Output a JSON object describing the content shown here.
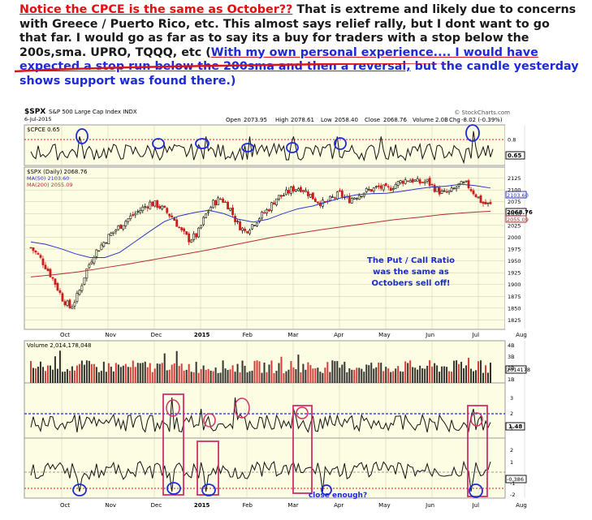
{
  "intro": {
    "highlight": "Notice the CPCE is the same as October??",
    "text_1": " That is extreme and likely due to concerns with Greece / Puerto Rico, etc.  This almost says relief rally, but I dont want to go that far.  I would go as far as to say its a buy for traders with a stop below the 200s,sma.  UPRO, TQQQ, etc  (",
    "note": "With my own personal experience.... I would have expected a stop run below the 200sma and then a reversal,",
    "text_2": " but the candle yesterday shows support was found there.)"
  },
  "header": {
    "symbol": "$SPX",
    "name": "S&P 500 Large Cap Index INDX",
    "date": "6-Jul-2015",
    "source": "© StockCharts.com",
    "open_label": "Open",
    "open": "2073.95",
    "high_label": "High",
    "high": "2078.61",
    "low_label": "Low",
    "low": "2058.40",
    "close_label": "Close",
    "close": "2068.76",
    "volume_label": "Volume",
    "volume": "2.0B",
    "chg_label": "Chg",
    "chg": "-8.02 (-0.39%)"
  },
  "panels": {
    "cpce_label": "$CPCE 0.65",
    "cpce_value_tag": "0.65",
    "price_label": "$SPX (Daily) 2068.76",
    "ma50_label": "MA(50) 2103.60",
    "ma200_label": "MA(200) 2055.09",
    "price_tag_ma50": "2103.60",
    "price_tag_close": "2068.76",
    "price_tag_ma200": "2055.09",
    "volume_label": "Volume 2,014,178,048",
    "volume_tag": "2014178",
    "ind1_tag": "1.48",
    "ind2_tag": "-0.386"
  },
  "annotations": {
    "putcall_line1": "The Put / Call Ratio",
    "putcall_line2": "was the same as",
    "putcall_line3": "Octobers sell off!",
    "close_enough": "close enough?"
  },
  "colors": {
    "chart_bg": "#fdfde3",
    "grid": "#c8c8a8",
    "ma50": "#2b35c8",
    "ma200": "#b03030",
    "annotation_blue": "#1c2bd6",
    "annotation_red": "#e01010",
    "box_pink": "#d0306a",
    "candle_up": "#111111",
    "candle_down": "#cc1c1c"
  },
  "chart_data": {
    "type": "line",
    "title": "$SPX S&P 500 Large Cap Index INDX",
    "x_ticks": [
      "Oct",
      "Nov",
      "Dec",
      "2015",
      "Feb",
      "Mar",
      "Apr",
      "May",
      "Jun",
      "Jul",
      "Aug"
    ],
    "price": {
      "ylim": [
        1812,
        2138
      ],
      "y_ticks": [
        2125,
        2100,
        2075,
        2050,
        2025,
        2000,
        1975,
        1950,
        1925,
        1900,
        1875,
        1850,
        1825
      ],
      "close_path": [
        1978,
        1960,
        1935,
        1905,
        1870,
        1850,
        1880,
        1930,
        1965,
        1985,
        2005,
        2020,
        2035,
        2048,
        2060,
        2072,
        2068,
        2055,
        2040,
        2012,
        1995,
        2005,
        2045,
        2072,
        2082,
        2065,
        2030,
        2012,
        2028,
        2045,
        2060,
        2083,
        2090,
        2102,
        2105,
        2093,
        2078,
        2070,
        2082,
        2092,
        2078,
        2087,
        2096,
        2101,
        2106,
        2100,
        2112,
        2120,
        2122,
        2115,
        2118,
        2103,
        2092,
        2096,
        2110,
        2112,
        2093,
        2072,
        2068
      ],
      "series": [
        {
          "name": "MA(50)",
          "values": [
            1990,
            1985,
            1976,
            1965,
            1957,
            1957,
            1968,
            1990,
            2012,
            2033,
            2045,
            2052,
            2057,
            2050,
            2038,
            2032,
            2038,
            2050,
            2060,
            2066,
            2075,
            2084,
            2090,
            2092,
            2093,
            2097,
            2102,
            2106,
            2108,
            2112,
            2109,
            2104
          ]
        },
        {
          "name": "MA(200)",
          "values": [
            1916,
            1921,
            1927,
            1935,
            1943,
            1952,
            1961,
            1970,
            1980,
            1990,
            2000,
            2008,
            2016,
            2023,
            2030,
            2037,
            2042,
            2048,
            2052,
            2055
          ]
        }
      ]
    },
    "cpce": {
      "ylim": [
        0.4,
        1.0
      ],
      "y_ticks": [
        0.8
      ],
      "last": 0.65
    },
    "volume": {
      "y_ticks": [
        "4B",
        "3B",
        "2B",
        "1B"
      ],
      "last": 2014178048
    },
    "indicator_1": {
      "y_ticks": [
        3,
        2,
        1
      ],
      "last": 1.48
    },
    "indicator_2": {
      "y_ticks": [
        2,
        1,
        -1,
        -2
      ],
      "last": -0.386
    }
  }
}
